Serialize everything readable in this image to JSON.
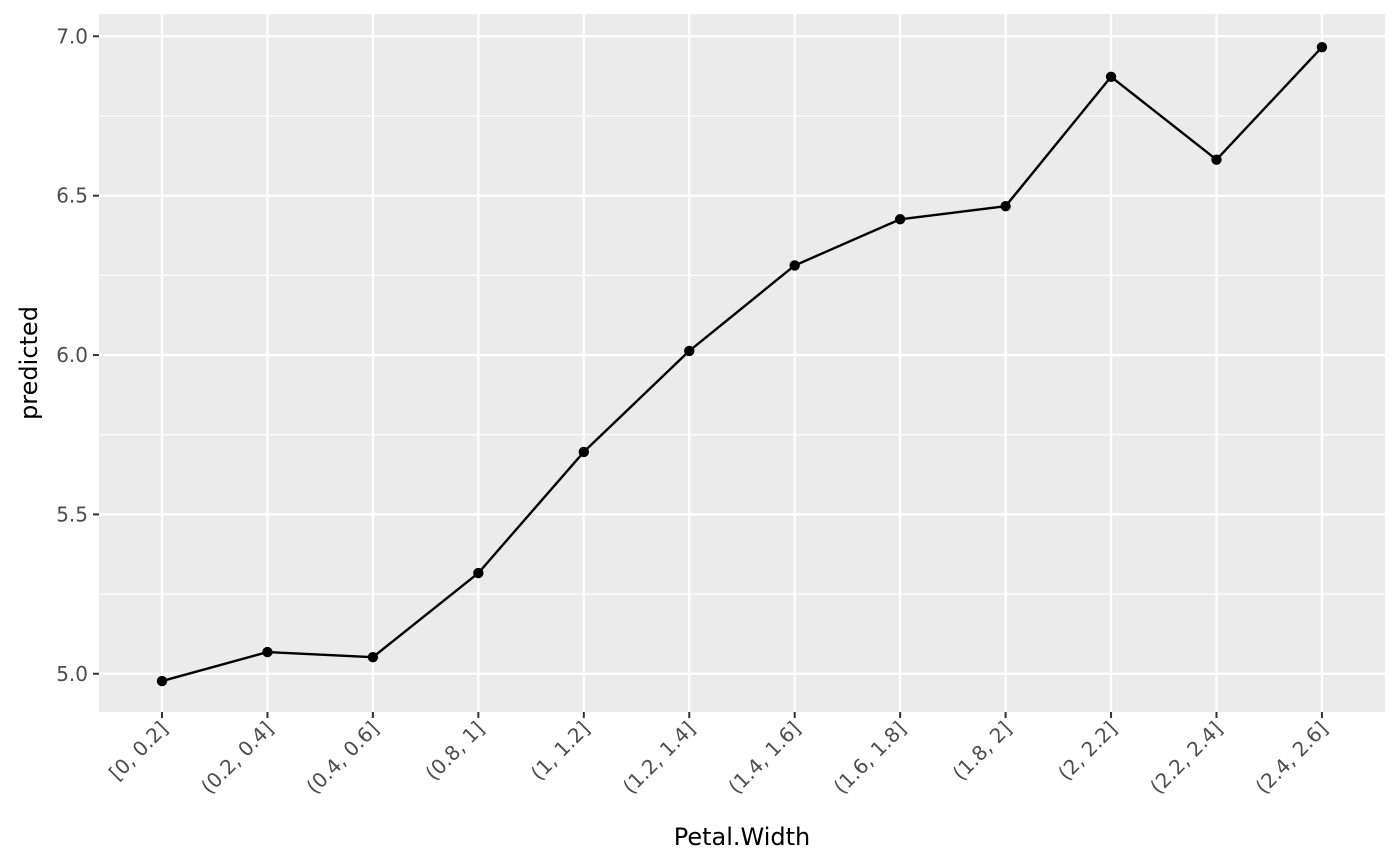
{
  "chart_data": {
    "type": "line",
    "title": "",
    "xlabel": "Petal.Width",
    "ylabel": "predicted",
    "categories": [
      "[0, 0.2]",
      "(0.2, 0.4]",
      "(0.4, 0.6]",
      "(0.8, 1]",
      "(1, 1.2]",
      "(1.2, 1.4]",
      "(1.4, 1.6]",
      "(1.6, 1.8]",
      "(1.8, 2]",
      "(2, 2.2]",
      "(2.2, 2.4]",
      "(2.4, 2.6]"
    ],
    "series": [
      {
        "values": [
          4.977,
          5.068,
          5.052,
          5.316,
          5.696,
          6.013,
          6.281,
          6.426,
          6.467,
          6.873,
          6.613,
          6.966
        ]
      }
    ],
    "ylim": [
      4.88,
      7.07
    ],
    "yticks": [
      5.0,
      5.5,
      6.0,
      6.5,
      7.0
    ],
    "ytick_labels": [
      "5.0",
      "5.5",
      "6.0",
      "6.5",
      "7.0"
    ],
    "grid": true,
    "panel_background": "#ebebeb",
    "grid_color": "#ffffff",
    "line_color": "#000000",
    "point_color": "#000000",
    "tick_color": "#333333",
    "tick_label_color": "#4d4d4d"
  }
}
